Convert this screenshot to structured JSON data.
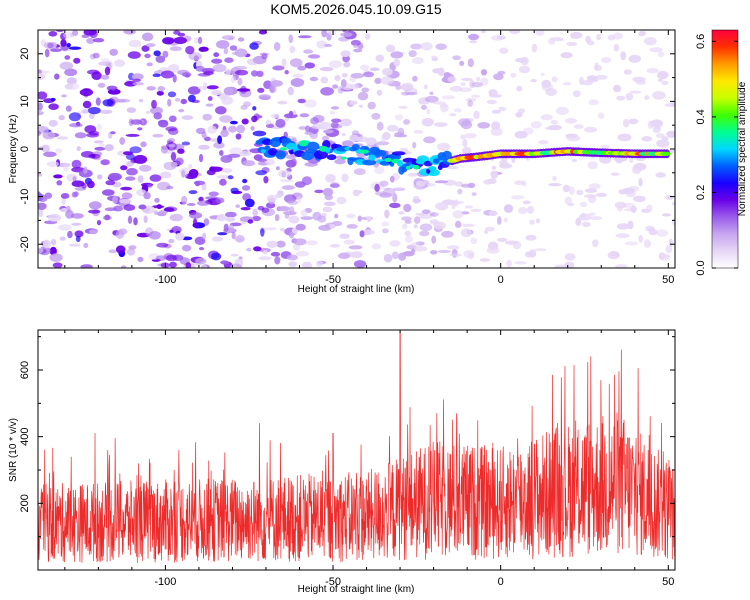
{
  "title": "KOM5.2026.045.10.09.G15",
  "chart_data": [
    {
      "type": "heatmap",
      "xlabel": "Height of straight line (km)",
      "ylabel": "Frequency (Hz)",
      "xlim": [
        -138,
        52
      ],
      "ylim": [
        -25,
        25
      ],
      "xticks": [
        -100,
        -50,
        0,
        50
      ],
      "yticks": [
        -20,
        -10,
        0,
        10,
        20
      ],
      "xtick_labels": [
        "-100",
        "-50",
        "0",
        "50"
      ],
      "ytick_labels": [
        "-20",
        "-10",
        "0",
        "10",
        "20"
      ],
      "grid": false,
      "colorbar": {
        "label": "Normalized spectral amplitude",
        "range": [
          0,
          0.63
        ],
        "ticks": [
          0.0,
          0.2,
          0.4,
          0.6
        ],
        "tick_labels": [
          "0.0",
          "0.2",
          "0.4",
          "0.6"
        ],
        "colormap": [
          "#ffffff",
          "#e6d6f6",
          "#c7a6f0",
          "#9a5cec",
          "#6a00e8",
          "#1a00ff",
          "#0060ff",
          "#00d8ff",
          "#00ff90",
          "#40ff00",
          "#c8ff00",
          "#ffe800",
          "#ff9a00",
          "#ff3000",
          "#ff0040"
        ]
      },
      "features": [
        {
          "name": "scattered noise",
          "x_range": [
            -138,
            52
          ],
          "freq_range": [
            -25,
            25
          ],
          "amplitude": 0.02,
          "denser_region_x": [
            -138,
            -70
          ]
        },
        {
          "name": "signal track",
          "points": [
            [
              -72,
              0
            ],
            [
              -65,
              0.5
            ],
            [
              -55,
              0
            ],
            [
              -45,
              -1
            ],
            [
              -35,
              -2
            ],
            [
              -28,
              -3
            ],
            [
              -20,
              -3.5
            ],
            [
              -12,
              -2
            ],
            [
              -5,
              -1.5
            ],
            [
              0,
              -1
            ],
            [
              10,
              -1
            ],
            [
              20,
              -0.5
            ],
            [
              30,
              -0.8
            ],
            [
              40,
              -1
            ],
            [
              50,
              -1
            ]
          ],
          "peak_amplitude": 0.6
        }
      ]
    },
    {
      "type": "line",
      "xlabel": "Height of straight line (km)",
      "ylabel": "SNR (10 * v/v)",
      "xlim": [
        -138,
        52
      ],
      "ylim": [
        0,
        720
      ],
      "xticks": [
        -100,
        -50,
        0,
        50
      ],
      "yticks": [
        200,
        400,
        600
      ],
      "xtick_labels": [
        "-100",
        "-50",
        "0",
        "50"
      ],
      "ytick_labels": [
        "200",
        "400",
        "600"
      ],
      "color": "#ee2b2b",
      "series_summary": {
        "baseline": [
          [
            -138,
            140
          ],
          [
            -80,
            150
          ],
          [
            -40,
            160
          ],
          [
            -20,
            210
          ],
          [
            0,
            200
          ],
          [
            20,
            240
          ],
          [
            35,
            260
          ],
          [
            52,
            170
          ]
        ],
        "peaks": [
          [
            -136,
            360
          ],
          [
            -121,
            410
          ],
          [
            -115,
            395
          ],
          [
            -72,
            440
          ],
          [
            -50,
            410
          ],
          [
            -30,
            715
          ],
          [
            -19,
            470
          ],
          [
            -13,
            455
          ],
          [
            17,
            440
          ],
          [
            34,
            585
          ],
          [
            36,
            660
          ],
          [
            41,
            605
          ],
          [
            48,
            440
          ]
        ]
      }
    }
  ]
}
